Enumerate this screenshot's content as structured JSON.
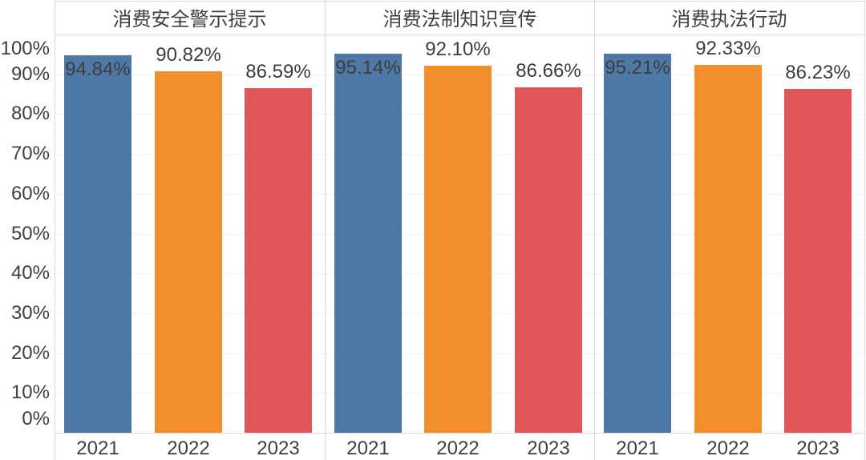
{
  "chart_data": {
    "type": "bar",
    "layout": "three-panel faceted bar chart, one bar per year in each panel",
    "panels": [
      {
        "title": "消费安全警示提示",
        "categories": [
          "2021",
          "2022",
          "2023"
        ],
        "values": [
          94.84,
          90.82,
          86.59
        ],
        "value_labels": [
          "94.84%",
          "90.82%",
          "86.59%"
        ]
      },
      {
        "title": "消费法制知识宣传",
        "categories": [
          "2021",
          "2022",
          "2023"
        ],
        "values": [
          95.14,
          92.1,
          86.66
        ],
        "value_labels": [
          "95.14%",
          "92.10%",
          "86.66%"
        ]
      },
      {
        "title": "消费执法行动",
        "categories": [
          "2021",
          "2022",
          "2023"
        ],
        "values": [
          95.21,
          92.33,
          86.23
        ],
        "value_labels": [
          "95.21%",
          "92.33%",
          "86.23%"
        ]
      }
    ],
    "bar_colors": [
      "#4E79A7",
      "#F28E2B",
      "#E15759"
    ],
    "y_ticks": [
      "100%",
      "90%",
      "80%",
      "70%",
      "60%",
      "50%",
      "40%",
      "30%",
      "20%",
      "10%",
      "0%"
    ],
    "ylim": [
      0,
      100
    ],
    "xlabel": "",
    "ylabel": "",
    "grid": true,
    "legend": "none",
    "style": {
      "text_color": "#3f3f3f",
      "border_color": "#d9d9d9",
      "gridline_color": "#f3f3f3",
      "background": "#ffffff"
    }
  }
}
